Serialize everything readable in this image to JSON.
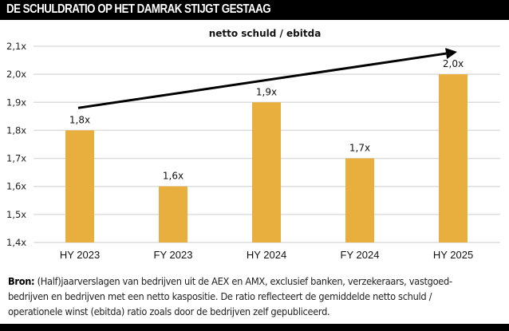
{
  "header": {
    "title": "DE SCHULDRATIO OP HET DAMRAK STIJGT GESTAAG"
  },
  "source": {
    "label": "Bron:",
    "text": " (Half)jaarverslagen van bedrijven uit de AEX en AMX, exclusief banken, verzekeraars, vastgoed-bedrijven en bedrijven met een netto kaspositie. De ratio reflecteert de gemiddelde netto schuld / operationele winst (ebitda) ratio zoals door de bedrijven zelf gepubliceerd."
  },
  "colors": {
    "bar": "#E8AE3E",
    "grid": "#DDDDDD",
    "arrow": "#000000"
  },
  "chart_data": {
    "type": "bar",
    "title": "",
    "annotation": "netto schuld / ebitda",
    "categories": [
      "HY 2023",
      "FY 2023",
      "HY 2024",
      "FY 2024",
      "HY 2025"
    ],
    "values": [
      1.8,
      1.6,
      1.9,
      1.7,
      2.0
    ],
    "data_labels": [
      "1,8x",
      "1,6x",
      "1,9x",
      "1,7x",
      "2,0x"
    ],
    "xlabel": "",
    "ylabel": "",
    "ylim": [
      1.4,
      2.1
    ],
    "yticks": [
      1.4,
      1.5,
      1.6,
      1.7,
      1.8,
      1.9,
      2.0,
      2.1
    ],
    "ytick_labels": [
      "1,4x",
      "1,5x",
      "1,6x",
      "1,7x",
      "1,8x",
      "1,9x",
      "2,0x",
      "2,1x"
    ],
    "grid": true,
    "trend_arrow": {
      "from": "HY 2023",
      "from_value": 1.88,
      "to": "HY 2025",
      "to_value": 2.08
    }
  }
}
